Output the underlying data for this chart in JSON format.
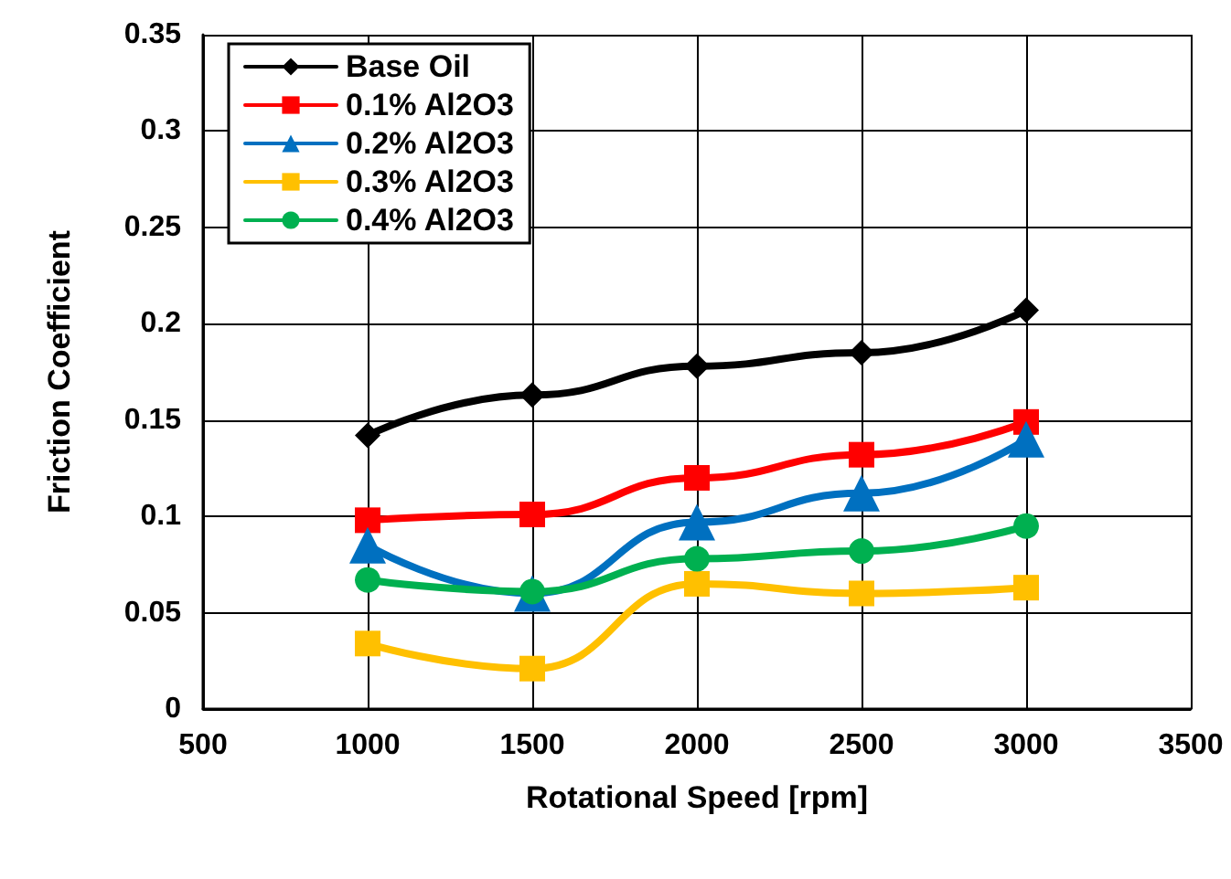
{
  "chart_data": {
    "type": "line",
    "xlabel": "Rotational Speed [rpm]",
    "ylabel": "Friction Coefficient",
    "x": [
      1000,
      1500,
      2000,
      2500,
      3000
    ],
    "xlim": [
      500,
      3500
    ],
    "xticks": [
      500,
      1000,
      1500,
      2000,
      2500,
      3000,
      3500
    ],
    "ylim": [
      0,
      0.35
    ],
    "yticks": [
      0,
      0.05,
      0.1,
      0.15,
      0.2,
      0.25,
      0.3,
      0.35
    ],
    "grid": true,
    "legend": "top left",
    "series": [
      {
        "name": "Base Oil",
        "color": "#000000",
        "marker": "diamond",
        "values": [
          0.142,
          0.163,
          0.178,
          0.185,
          0.207
        ]
      },
      {
        "name": "0.1% Al2O3",
        "color": "#ff0000",
        "marker": "square",
        "values": [
          0.098,
          0.101,
          0.12,
          0.132,
          0.149
        ]
      },
      {
        "name": "0.2% Al2O3",
        "color": "#0070c0",
        "marker": "triangle",
        "values": [
          0.085,
          0.06,
          0.097,
          0.112,
          0.14
        ]
      },
      {
        "name": "0.3% Al2O3",
        "color": "#ffc000",
        "marker": "square",
        "values": [
          0.034,
          0.021,
          0.065,
          0.06,
          0.063
        ]
      },
      {
        "name": "0.4% Al2O3",
        "color": "#00b050",
        "marker": "circle",
        "values": [
          0.067,
          0.061,
          0.078,
          0.082,
          0.095
        ]
      }
    ]
  }
}
